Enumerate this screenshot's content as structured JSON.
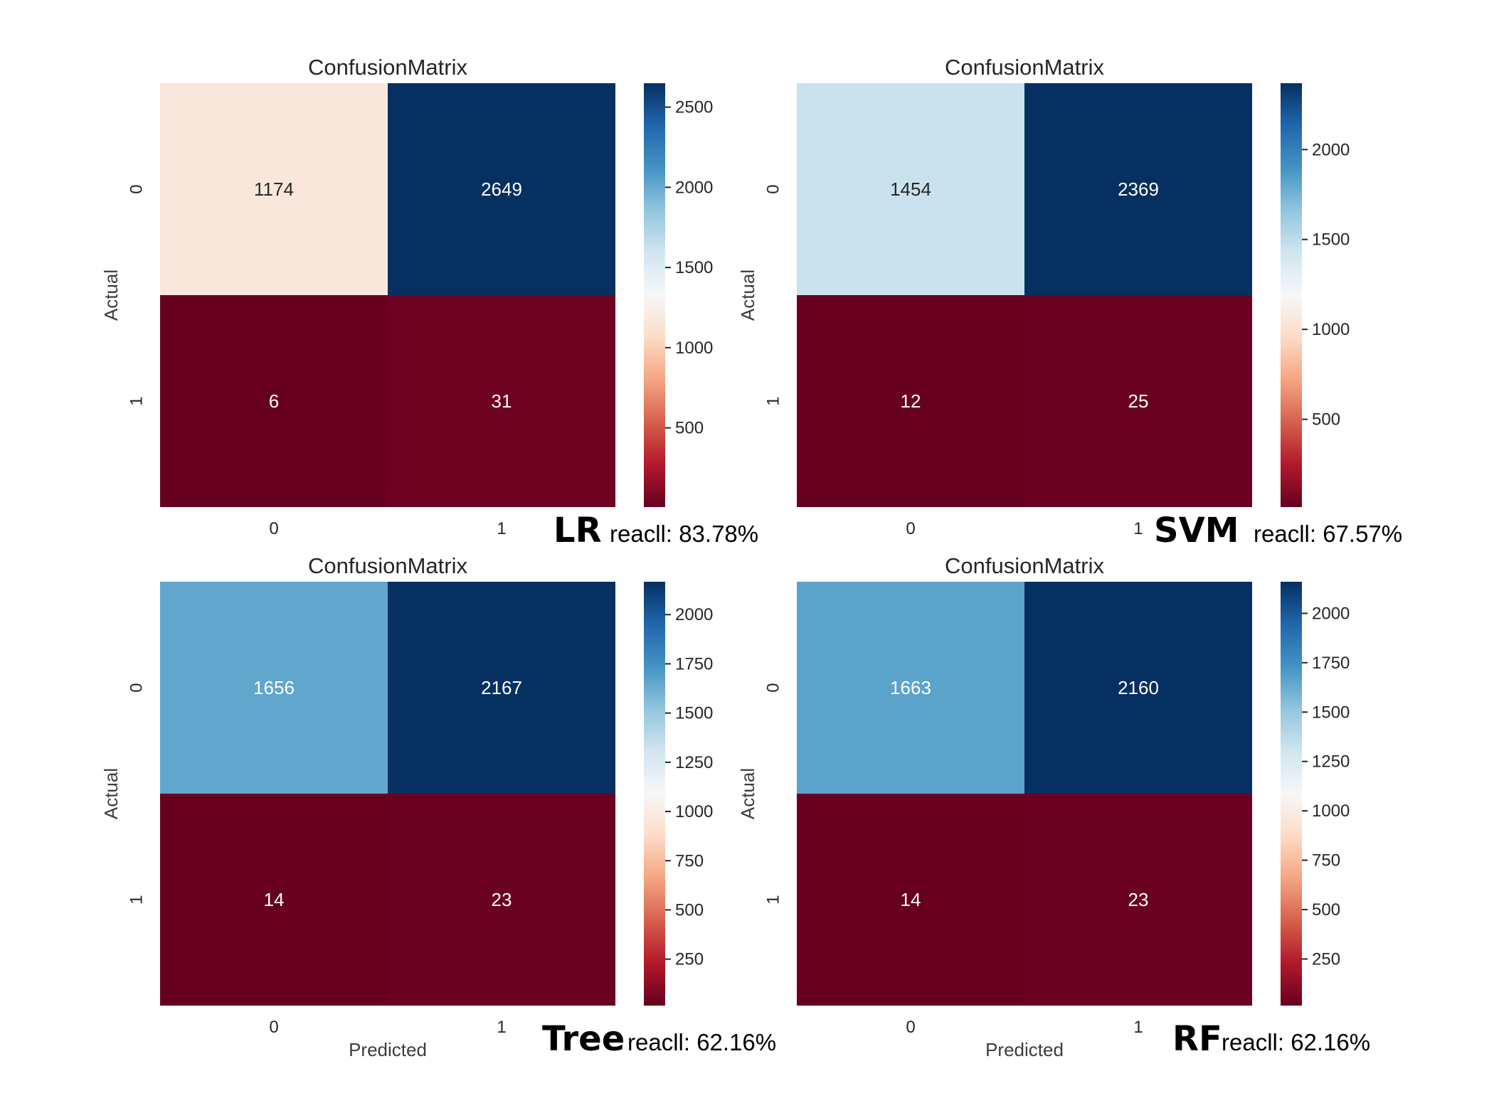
{
  "chart_data": [
    {
      "type": "heatmap",
      "title": "ConfusionMatrix",
      "model": "LR",
      "recall_text": "reacll: 83.78%",
      "xlabel": "",
      "ylabel": "Actual",
      "x_ticks": [
        "0",
        "1"
      ],
      "y_ticks": [
        "0",
        "1"
      ],
      "matrix": [
        [
          1174,
          2649
        ],
        [
          6,
          31
        ]
      ],
      "colorbar": {
        "ticks": [
          500,
          1000,
          1500,
          2000,
          2500
        ],
        "range": [
          6,
          2649
        ],
        "colormap": "RdBu"
      }
    },
    {
      "type": "heatmap",
      "title": "ConfusionMatrix",
      "model": "SVM",
      "recall_text": "reacll: 67.57%",
      "xlabel": "",
      "ylabel": "Actual",
      "x_ticks": [
        "0",
        "1"
      ],
      "y_ticks": [
        "0",
        "1"
      ],
      "matrix": [
        [
          1454,
          2369
        ],
        [
          12,
          25
        ]
      ],
      "colorbar": {
        "ticks": [
          500,
          1000,
          1500,
          2000
        ],
        "range": [
          12,
          2369
        ],
        "colormap": "RdBu"
      }
    },
    {
      "type": "heatmap",
      "title": "ConfusionMatrix",
      "model": "Tree",
      "recall_text": "reacll: 62.16%",
      "xlabel": "Predicted",
      "ylabel": "Actual",
      "x_ticks": [
        "0",
        "1"
      ],
      "y_ticks": [
        "0",
        "1"
      ],
      "matrix": [
        [
          1656,
          2167
        ],
        [
          14,
          23
        ]
      ],
      "colorbar": {
        "ticks": [
          250,
          500,
          750,
          1000,
          1250,
          1500,
          1750,
          2000
        ],
        "range": [
          14,
          2167
        ],
        "colormap": "RdBu"
      }
    },
    {
      "type": "heatmap",
      "title": "ConfusionMatrix",
      "model": "RF",
      "recall_text": "reacll: 62.16%",
      "xlabel": "Predicted",
      "ylabel": "Actual",
      "x_ticks": [
        "0",
        "1"
      ],
      "y_ticks": [
        "0",
        "1"
      ],
      "matrix": [
        [
          1663,
          2160
        ],
        [
          14,
          23
        ]
      ],
      "colorbar": {
        "ticks": [
          250,
          500,
          750,
          1000,
          1250,
          1500,
          1750,
          2000
        ],
        "range": [
          14,
          2160
        ],
        "colormap": "RdBu"
      }
    }
  ]
}
